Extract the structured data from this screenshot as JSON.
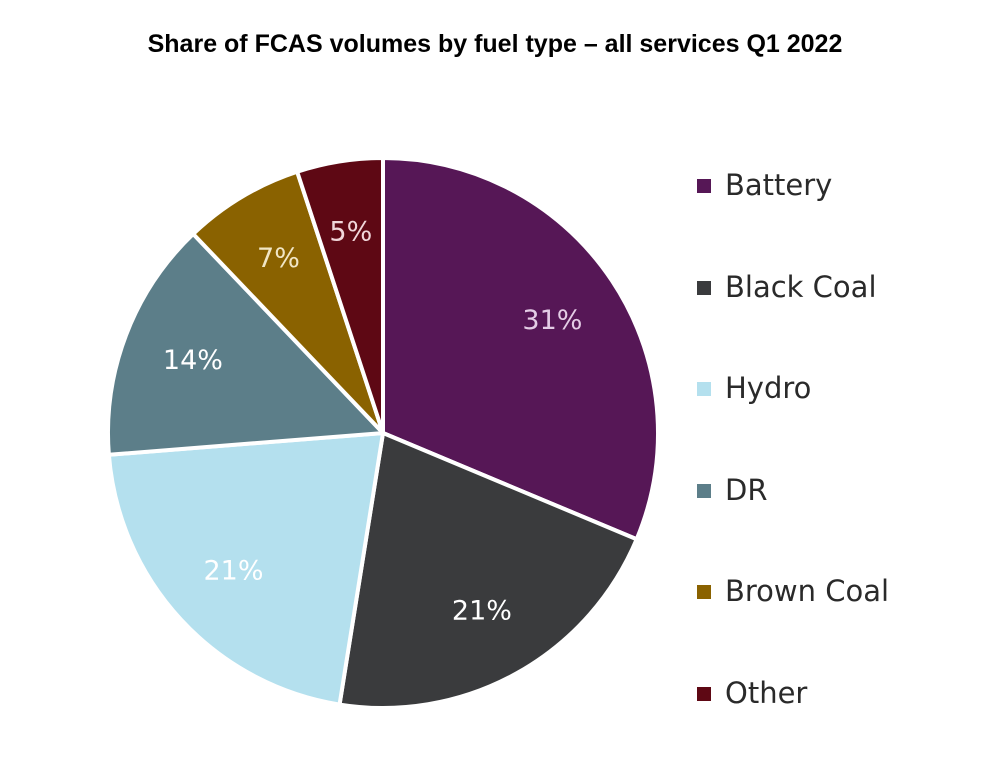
{
  "chart_data": {
    "type": "pie",
    "title": "Share of FCAS volumes by fuel type – all services Q1 2022",
    "legend_position": "right",
    "slices": [
      {
        "name": "Battery",
        "value": 31,
        "label": "31%",
        "color": "#561756",
        "label_color": "#e4cde6"
      },
      {
        "name": "Black Coal",
        "value": 21,
        "label": "21%",
        "color": "#3a3b3d",
        "label_color": "#ffffff"
      },
      {
        "name": "Hydro",
        "value": 21,
        "label": "21%",
        "color": "#b4e0ee",
        "label_color": "#ffffff"
      },
      {
        "name": "DR",
        "value": 14,
        "label": "14%",
        "color": "#5c7e89",
        "label_color": "#ffffff"
      },
      {
        "name": "Brown Coal",
        "value": 7,
        "label": "7%",
        "color": "#8a6200",
        "label_color": "#f1e6c5"
      },
      {
        "name": "Other",
        "value": 5,
        "label": "5%",
        "color": "#5e0814",
        "label_color": "#f1d6da"
      }
    ]
  }
}
